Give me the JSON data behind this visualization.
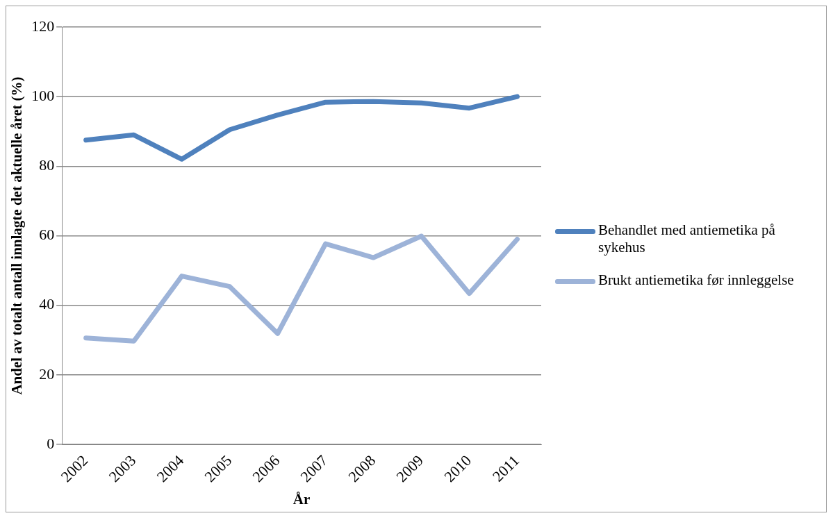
{
  "chart_data": {
    "type": "line",
    "xlabel": "År",
    "ylabel": "Andel av totalt antall innlagte det aktuelle året (%)",
    "categories": [
      "2002",
      "2003",
      "2004",
      "2005",
      "2006",
      "2007",
      "2008",
      "2009",
      "2010",
      "2011"
    ],
    "series": [
      {
        "name": "Behandlet med antiemetika på sykehus",
        "color": "#4f81bd",
        "values": [
          87.5,
          89,
          82,
          90.5,
          94.7,
          98.4,
          98.6,
          98.2,
          96.7,
          100
        ]
      },
      {
        "name": "Brukt antiemetika før innleggelse",
        "color": "#9db3d8",
        "values": [
          30.6,
          29.7,
          48.4,
          45.4,
          31.9,
          57.7,
          53.7,
          59.9,
          43.4,
          59
        ]
      }
    ],
    "ylim": [
      0,
      120
    ],
    "yticks": [
      0,
      20,
      40,
      60,
      80,
      100,
      120
    ],
    "grid": "y",
    "legend": "right",
    "marker": "none",
    "line_style": "solid"
  }
}
